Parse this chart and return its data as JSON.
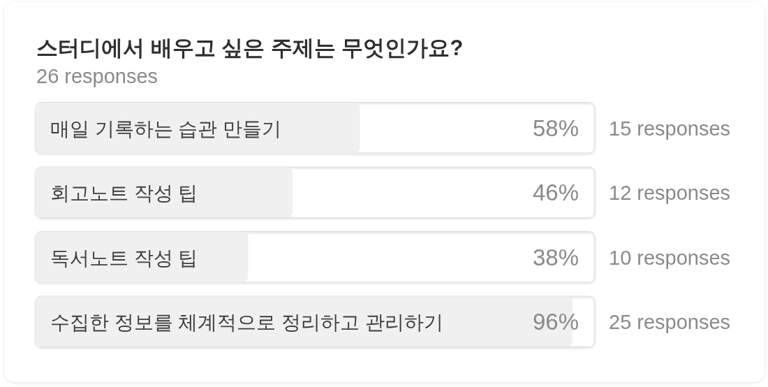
{
  "chart_data": {
    "type": "bar",
    "orientation": "horizontal",
    "title": "스터디에서 배우고 싶은 주제는 무엇인가요?",
    "subtitle": "26 responses",
    "categories": [
      "매일 기록하는 습관 만들기",
      "회고노트 작성 팁",
      "독서노트 작성 팁",
      "수집한 정보를 체계적으로 정리하고 관리하기"
    ],
    "values": [
      58,
      46,
      38,
      96
    ],
    "value_labels": [
      "58%",
      "46%",
      "38%",
      "96%"
    ],
    "color": "#f0f0f0",
    "xlim": [
      0,
      100
    ],
    "tick_labels": "y",
    "annotations": [
      "15 responses",
      "12 responses",
      "10 responses",
      "25 responses"
    ]
  }
}
